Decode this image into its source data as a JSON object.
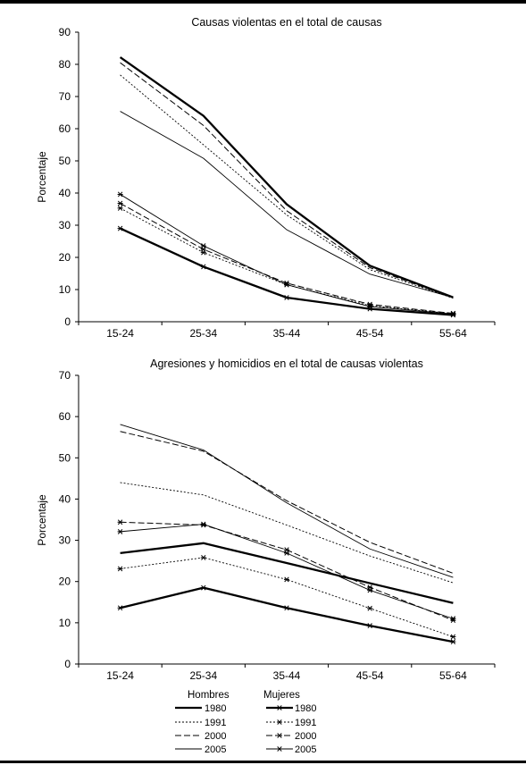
{
  "legend": {
    "group_men": "Hombres",
    "group_women": "Mujeres",
    "entries": [
      "1980",
      "1991",
      "2000",
      "2005"
    ]
  },
  "chart_data": [
    {
      "type": "line",
      "title": "Causas violentas en el total de causas",
      "xlabel": "",
      "ylabel": "Porcentaje",
      "categories": [
        "15-24",
        "25-34",
        "35-44",
        "45-54",
        "55-64"
      ],
      "ylim": [
        0,
        90
      ],
      "yticks": [
        0,
        10,
        20,
        30,
        40,
        50,
        60,
        70,
        80,
        90
      ],
      "grid": false,
      "legend_position": "bottom",
      "series": [
        {
          "name": "1980",
          "group": "Hombres",
          "values": [
            82.2,
            64.0,
            36.5,
            17.4,
            7.6
          ]
        },
        {
          "name": "1991",
          "group": "Hombres",
          "values": [
            76.7,
            55.0,
            33.2,
            16.2,
            7.3
          ]
        },
        {
          "name": "2000",
          "group": "Hombres",
          "values": [
            80.5,
            61.0,
            34.5,
            16.8,
            7.4
          ]
        },
        {
          "name": "2005",
          "group": "Hombres",
          "values": [
            65.4,
            50.8,
            28.6,
            14.8,
            7.5
          ]
        },
        {
          "name": "1980",
          "group": "Mujeres",
          "values": [
            29.0,
            17.1,
            7.5,
            4.0,
            2.1
          ]
        },
        {
          "name": "1991",
          "group": "Mujeres",
          "values": [
            35.3,
            21.5,
            11.5,
            5.0,
            2.5
          ]
        },
        {
          "name": "2000",
          "group": "Mujeres",
          "values": [
            36.8,
            22.5,
            12.0,
            5.4,
            2.6
          ]
        },
        {
          "name": "2005",
          "group": "Mujeres",
          "values": [
            39.6,
            23.6,
            11.5,
            4.7,
            2.4
          ]
        }
      ]
    },
    {
      "type": "line",
      "title": "Agresiones y homicidios en el total de causas violentas",
      "xlabel": "",
      "ylabel": "Porcentaje",
      "categories": [
        "15-24",
        "25-34",
        "35-44",
        "45-54",
        "55-64"
      ],
      "ylim": [
        0,
        70
      ],
      "yticks": [
        0,
        10,
        20,
        30,
        40,
        50,
        60,
        70
      ],
      "grid": false,
      "legend_position": "bottom",
      "series": [
        {
          "name": "1980",
          "group": "Hombres",
          "values": [
            26.9,
            29.3,
            24.5,
            19.6,
            14.8
          ]
        },
        {
          "name": "1991",
          "group": "Hombres",
          "values": [
            44.0,
            41.0,
            33.7,
            26.2,
            19.7
          ]
        },
        {
          "name": "2000",
          "group": "Hombres",
          "values": [
            56.4,
            51.6,
            39.6,
            29.5,
            22.0
          ]
        },
        {
          "name": "2005",
          "group": "Hombres",
          "values": [
            58.1,
            51.9,
            39.1,
            27.9,
            21.0
          ]
        },
        {
          "name": "1980",
          "group": "Mujeres",
          "values": [
            13.6,
            18.5,
            13.6,
            9.3,
            5.4
          ]
        },
        {
          "name": "1991",
          "group": "Mujeres",
          "values": [
            23.1,
            25.8,
            20.5,
            13.5,
            6.6
          ]
        },
        {
          "name": "2000",
          "group": "Mujeres",
          "values": [
            34.4,
            33.7,
            27.7,
            18.6,
            10.6
          ]
        },
        {
          "name": "2005",
          "group": "Mujeres",
          "values": [
            32.1,
            33.9,
            26.9,
            17.9,
            11.0
          ]
        }
      ]
    }
  ]
}
